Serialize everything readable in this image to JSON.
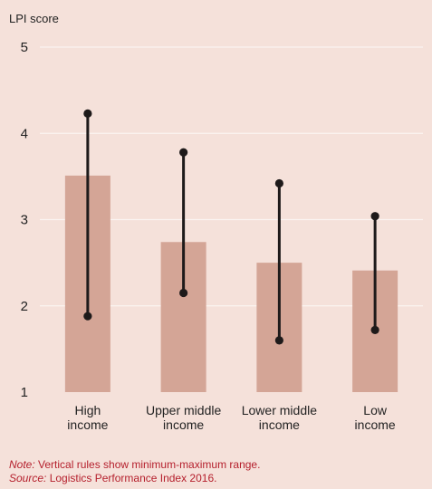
{
  "chart_data": {
    "type": "bar",
    "ylabel": "LPI score",
    "ylim": [
      1,
      5
    ],
    "yticks": [
      1,
      2,
      3,
      4,
      5
    ],
    "grid": true,
    "categories": [
      [
        "High",
        "income"
      ],
      [
        "Upper middle",
        "income"
      ],
      [
        "Lower middle",
        "income"
      ],
      [
        "Low",
        "income"
      ]
    ],
    "values": [
      3.51,
      2.74,
      2.5,
      2.41
    ],
    "ranges": [
      {
        "min": 1.88,
        "max": 4.23
      },
      {
        "min": 2.15,
        "max": 3.78
      },
      {
        "min": 1.6,
        "max": 3.42
      },
      {
        "min": 1.72,
        "max": 3.04
      }
    ],
    "colors": {
      "bar": "#d4a596",
      "range": "#1e1a1a",
      "grid": "#fbf4f1",
      "background": "#f5e1da"
    }
  },
  "notes": {
    "note_label": "Note:",
    "note_text": " Vertical rules show minimum-maximum range.",
    "source_label": "Source:",
    "source_text": " Logistics Performance Index 2016."
  }
}
